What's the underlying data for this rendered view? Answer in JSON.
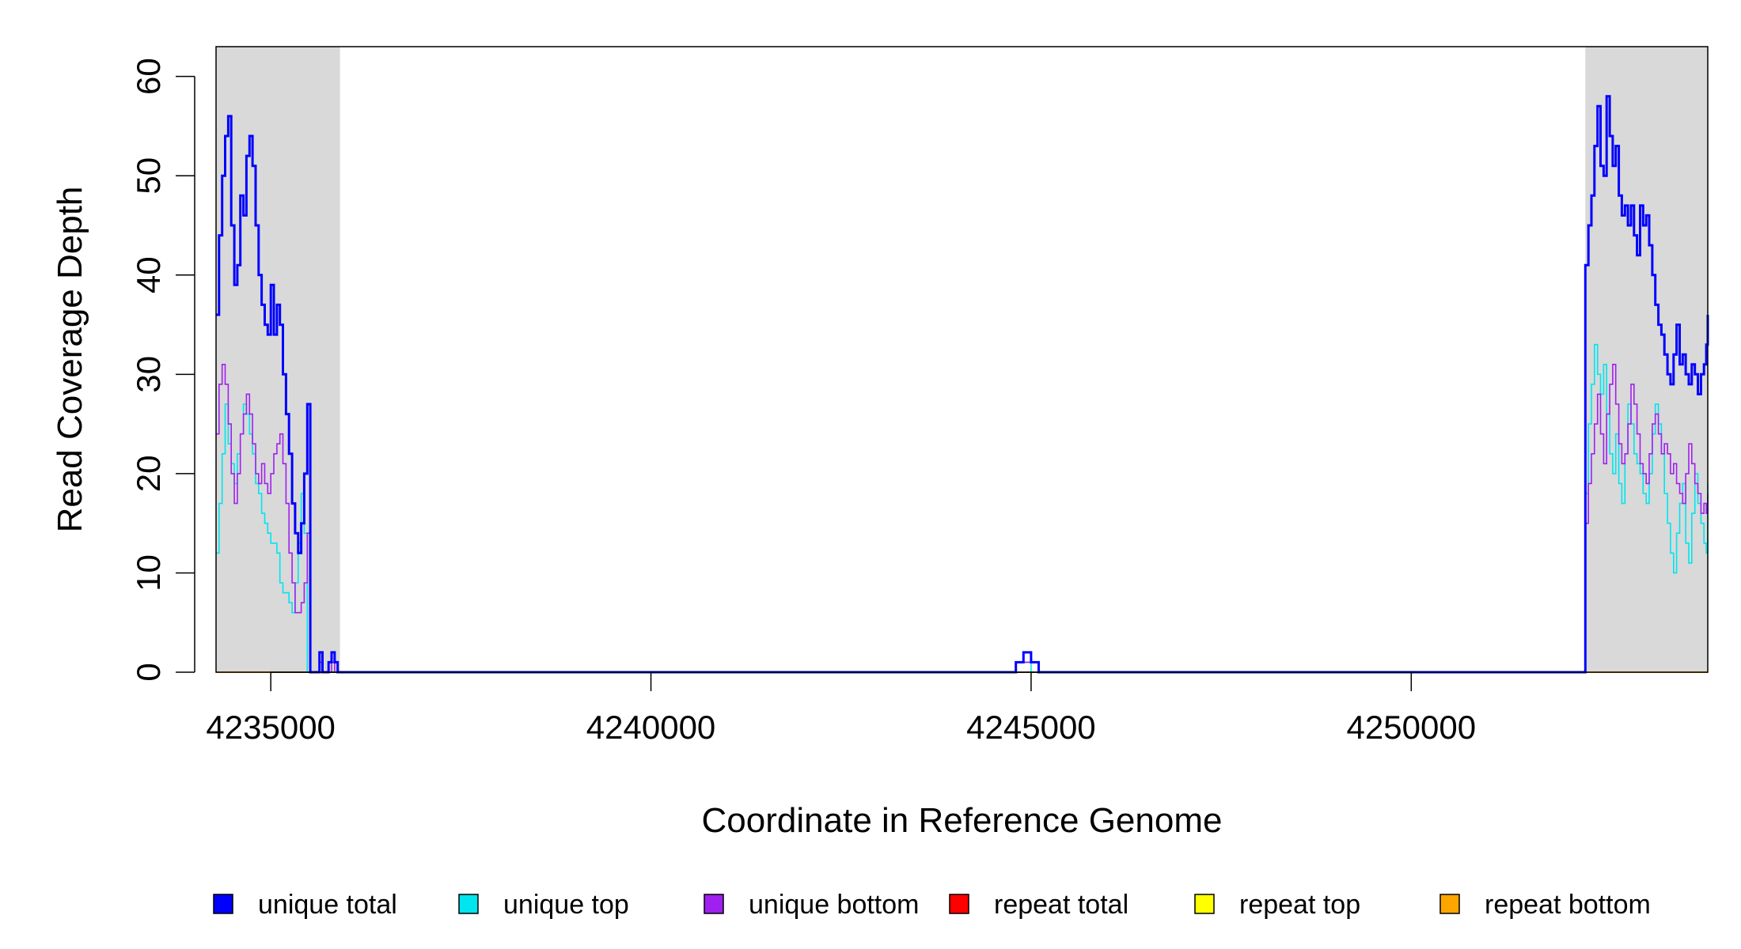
{
  "chart_data": {
    "type": "line",
    "title": "",
    "xlabel": "Coordinate in Reference Genome",
    "ylabel": "Read Coverage Depth",
    "xlim": [
      4234280,
      4253900
    ],
    "ylim": [
      0,
      63
    ],
    "xticks": [
      4235000,
      4240000,
      4245000,
      4250000
    ],
    "xtick_labels": [
      "4235000",
      "4240000",
      "4245000",
      "4250000"
    ],
    "yticks": [
      0,
      10,
      20,
      30,
      40,
      50,
      60
    ],
    "ytick_labels": [
      "0",
      "10",
      "20",
      "30",
      "40",
      "50",
      "60"
    ],
    "grid": false,
    "legend_position": "bottom",
    "highlighted_regions": [
      {
        "x_start": 4234280,
        "x_end": 4235910,
        "color": "#d9d9d9"
      },
      {
        "x_start": 4252290,
        "x_end": 4253900,
        "color": "#d9d9d9"
      }
    ],
    "series": [
      {
        "name": "unique total",
        "color": "#0000ff",
        "x": [
          4234280,
          4234320,
          4234360,
          4234400,
          4234440,
          4234480,
          4234520,
          4234560,
          4234600,
          4234640,
          4234680,
          4234720,
          4234760,
          4234800,
          4234840,
          4234880,
          4234920,
          4234960,
          4235000,
          4235040,
          4235080,
          4235120,
          4235160,
          4235200,
          4235240,
          4235280,
          4235320,
          4235360,
          4235400,
          4235440,
          4235480,
          4235520,
          4235560,
          4235600,
          4235640,
          4235680,
          4235720,
          4235760,
          4235800,
          4235840,
          4235880,
          4235910,
          4235920,
          4237300,
          4237450,
          4237450,
          4244700,
          4244800,
          4244900,
          4245000,
          4245100,
          4252280,
          4252290,
          4252330,
          4252370,
          4252410,
          4252450,
          4252490,
          4252530,
          4252570,
          4252610,
          4252650,
          4252690,
          4252730,
          4252770,
          4252810,
          4252850,
          4252890,
          4252930,
          4252970,
          4253010,
          4253050,
          4253090,
          4253130,
          4253170,
          4253210,
          4253250,
          4253290,
          4253330,
          4253370,
          4253410,
          4253450,
          4253490,
          4253530,
          4253570,
          4253610,
          4253650,
          4253690,
          4253730,
          4253770,
          4253810,
          4253850,
          4253880,
          4253900
        ],
        "y": [
          36,
          44,
          50,
          54,
          56,
          45,
          39,
          41,
          48,
          46,
          52,
          54,
          51,
          45,
          40,
          37,
          35,
          34,
          39,
          34,
          37,
          35,
          30,
          26,
          22,
          17,
          14,
          12,
          15,
          20,
          27,
          0,
          0,
          0,
          2,
          0,
          0,
          1,
          2,
          1,
          0,
          0,
          0,
          0,
          0,
          0,
          0,
          1,
          2,
          1,
          0,
          0,
          41,
          45,
          48,
          53,
          57,
          51,
          50,
          58,
          54,
          51,
          53,
          48,
          46,
          47,
          45,
          47,
          44,
          42,
          47,
          45,
          46,
          43,
          40,
          37,
          35,
          34,
          32,
          30,
          29,
          32,
          35,
          31,
          32,
          30,
          29,
          31,
          30,
          28,
          30,
          31,
          33,
          36
        ]
      },
      {
        "name": "unique top",
        "color": "#00e5ee",
        "x": [
          4234280,
          4234320,
          4234360,
          4234400,
          4234440,
          4234480,
          4234520,
          4234560,
          4234600,
          4234640,
          4234680,
          4234720,
          4234760,
          4234800,
          4234840,
          4234880,
          4234920,
          4234960,
          4235000,
          4235040,
          4235080,
          4235120,
          4235160,
          4235200,
          4235240,
          4235280,
          4235320,
          4235360,
          4235400,
          4235440,
          4235480,
          4235520,
          4235560,
          4235600,
          4235640,
          4235680,
          4235720,
          4235760,
          4235800,
          4235840,
          4235880,
          4235910,
          4235920,
          4244700,
          4244800,
          4244900,
          4245000,
          4252280,
          4252290,
          4252330,
          4252370,
          4252410,
          4252450,
          4252490,
          4252530,
          4252570,
          4252610,
          4252650,
          4252690,
          4252730,
          4252770,
          4252810,
          4252850,
          4252890,
          4252930,
          4252970,
          4253010,
          4253050,
          4253090,
          4253130,
          4253170,
          4253210,
          4253250,
          4253290,
          4253330,
          4253370,
          4253410,
          4253450,
          4253490,
          4253530,
          4253570,
          4253610,
          4253650,
          4253690,
          4253730,
          4253770,
          4253810,
          4253850,
          4253880,
          4253900
        ],
        "y": [
          12,
          17,
          22,
          27,
          23,
          21,
          19,
          22,
          24,
          27,
          26,
          24,
          22,
          19,
          18,
          16,
          15,
          14,
          13,
          13,
          12,
          9,
          8,
          8,
          7,
          6,
          9,
          13,
          18,
          14,
          0,
          0,
          0,
          0,
          0,
          0,
          0,
          0,
          0,
          0,
          0,
          0,
          0,
          0,
          1,
          1,
          0,
          0,
          18,
          25,
          29,
          33,
          30,
          28,
          31,
          26,
          22,
          20,
          24,
          19,
          17,
          22,
          27,
          25,
          22,
          21,
          20,
          18,
          17,
          20,
          24,
          27,
          25,
          22,
          18,
          15,
          12,
          10,
          14,
          17,
          19,
          13,
          11,
          16,
          20,
          17,
          15,
          13,
          12,
          19
        ]
      },
      {
        "name": "unique bottom",
        "color": "#a020f0",
        "x": [
          4234280,
          4234320,
          4234360,
          4234400,
          4234440,
          4234480,
          4234520,
          4234560,
          4234600,
          4234640,
          4234680,
          4234720,
          4234760,
          4234800,
          4234840,
          4234880,
          4234920,
          4234960,
          4235000,
          4235040,
          4235080,
          4235120,
          4235160,
          4235200,
          4235240,
          4235280,
          4235320,
          4235360,
          4235400,
          4235440,
          4235480,
          4235520,
          4235560,
          4235600,
          4235640,
          4235680,
          4235720,
          4235760,
          4235800,
          4235840,
          4235880,
          4235910,
          4235920,
          4237300,
          4237450,
          4237450,
          4244700,
          4244800,
          4244900,
          4245000,
          4245100,
          4252280,
          4252290,
          4252330,
          4252370,
          4252410,
          4252450,
          4252490,
          4252530,
          4252570,
          4252610,
          4252650,
          4252690,
          4252730,
          4252770,
          4252810,
          4252850,
          4252890,
          4252930,
          4252970,
          4253010,
          4253050,
          4253090,
          4253130,
          4253170,
          4253210,
          4253250,
          4253290,
          4253330,
          4253370,
          4253410,
          4253450,
          4253490,
          4253530,
          4253570,
          4253610,
          4253650,
          4253690,
          4253730,
          4253770,
          4253810,
          4253850,
          4253880,
          4253900
        ],
        "y": [
          24,
          29,
          31,
          29,
          25,
          20,
          17,
          20,
          24,
          26,
          28,
          26,
          23,
          20,
          19,
          21,
          19,
          18,
          20,
          22,
          23,
          24,
          21,
          17,
          12,
          9,
          6,
          6,
          7,
          9,
          14,
          0,
          0,
          0,
          1,
          0,
          0,
          0,
          1,
          0,
          0,
          0,
          0,
          0,
          0,
          0,
          0,
          1,
          1,
          1,
          0,
          0,
          15,
          19,
          22,
          25,
          28,
          24,
          21,
          26,
          29,
          31,
          27,
          23,
          21,
          22,
          25,
          29,
          27,
          24,
          21,
          20,
          19,
          22,
          25,
          26,
          24,
          22,
          23,
          22,
          20,
          21,
          19,
          18,
          17,
          20,
          23,
          21,
          19,
          18,
          16,
          17,
          16,
          18
        ]
      },
      {
        "name": "repeat total",
        "color": "#ff0000",
        "x": [
          4234280,
          4253900
        ],
        "y": [
          0,
          0
        ]
      },
      {
        "name": "repeat top",
        "color": "#ffff00",
        "x": [
          4234280,
          4253900
        ],
        "y": [
          0,
          0
        ]
      },
      {
        "name": "repeat bottom",
        "color": "#ffa500",
        "x": [
          4234280,
          4253900
        ],
        "y": [
          0,
          0
        ]
      }
    ]
  }
}
